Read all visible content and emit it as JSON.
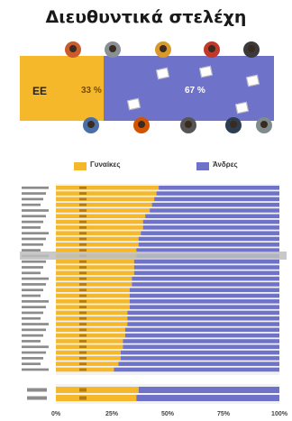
{
  "title": "Διευθυντικά στελέχη",
  "hero": {
    "region_label": "ΕΕ",
    "women_pct": 33,
    "men_pct": 67,
    "women_pct_text": "33 %",
    "men_pct_text": "67 %"
  },
  "legend": {
    "women": "Γυναίκες",
    "men": "Άνδρες"
  },
  "colors": {
    "women": "#f5b82a",
    "men": "#6e73c9",
    "label_text": "#7a4b00"
  },
  "chart_data": {
    "type": "bar",
    "orientation": "horizontal",
    "stacked": true,
    "xlim": [
      0,
      100
    ],
    "x_ticks": [
      "0%",
      "25%",
      "50%",
      "75%",
      "100%"
    ],
    "series": [
      {
        "name": "Γυναίκες",
        "values": [
          46,
          45,
          44,
          43,
          42,
          40,
          39,
          39,
          38,
          37,
          37,
          36,
          36,
          35,
          35,
          35,
          34,
          34,
          33,
          33,
          33,
          33,
          32,
          32,
          32,
          31,
          31,
          30,
          30,
          29,
          29,
          28,
          26
        ]
      },
      {
        "name": "Άνδρες",
        "values": [
          54,
          55,
          56,
          57,
          58,
          60,
          61,
          61,
          62,
          63,
          63,
          64,
          64,
          65,
          65,
          65,
          66,
          66,
          67,
          67,
          67,
          67,
          68,
          68,
          68,
          69,
          69,
          70,
          70,
          71,
          71,
          72,
          74
        ]
      }
    ],
    "bottom_group": {
      "women": [
        37,
        36
      ],
      "men": [
        63,
        64
      ]
    }
  }
}
